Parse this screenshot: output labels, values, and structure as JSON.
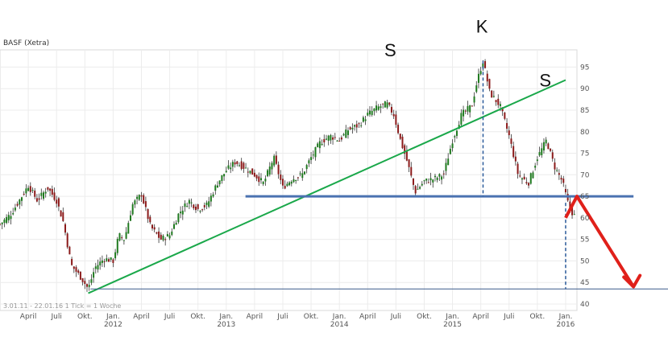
{
  "chart_data": {
    "type": "candlestick",
    "title": "BASF (Xetra)",
    "footer": "3.01.11 - 22.01.16  1 Tick = 1 Woche",
    "y_ticks": [
      40,
      45,
      50,
      55,
      60,
      65,
      70,
      75,
      80,
      85,
      90,
      95
    ],
    "ylim": [
      38.5,
      99
    ],
    "x_ticks": [
      {
        "label": "April",
        "year": "",
        "t": 2011.25
      },
      {
        "label": "Juli",
        "year": "",
        "t": 2011.5
      },
      {
        "label": "Okt.",
        "year": "",
        "t": 2011.75
      },
      {
        "label": "Jan.",
        "year": "2012",
        "t": 2012.0
      },
      {
        "label": "April",
        "year": "",
        "t": 2012.25
      },
      {
        "label": "Juli",
        "year": "",
        "t": 2012.5
      },
      {
        "label": "Okt.",
        "year": "",
        "t": 2012.75
      },
      {
        "label": "Jan.",
        "year": "2013",
        "t": 2013.0
      },
      {
        "label": "April",
        "year": "",
        "t": 2013.25
      },
      {
        "label": "Juli",
        "year": "",
        "t": 2013.5
      },
      {
        "label": "Okt.",
        "year": "",
        "t": 2013.75
      },
      {
        "label": "Jan.",
        "year": "2014",
        "t": 2014.0
      },
      {
        "label": "April",
        "year": "",
        "t": 2014.25
      },
      {
        "label": "Juli",
        "year": "",
        "t": 2014.5
      },
      {
        "label": "Okt.",
        "year": "",
        "t": 2014.75
      },
      {
        "label": "Jan.",
        "year": "2015",
        "t": 2015.0
      },
      {
        "label": "April",
        "year": "",
        "t": 2015.25
      },
      {
        "label": "Juli",
        "year": "",
        "t": 2015.5
      },
      {
        "label": "Okt.",
        "year": "",
        "t": 2015.75
      },
      {
        "label": "Jan.",
        "year": "2016",
        "t": 2016.0
      }
    ],
    "xlim": [
      2011.0,
      2016.1
    ],
    "price_path": [
      [
        2011.0,
        58.5
      ],
      [
        2011.1,
        61
      ],
      [
        2011.25,
        67.5
      ],
      [
        2011.33,
        64
      ],
      [
        2011.42,
        67
      ],
      [
        2011.5,
        64
      ],
      [
        2011.56,
        59
      ],
      [
        2011.63,
        49
      ],
      [
        2011.72,
        46
      ],
      [
        2011.78,
        43.5
      ],
      [
        2011.84,
        48.5
      ],
      [
        2011.92,
        50.5
      ],
      [
        2012.0,
        50
      ],
      [
        2012.05,
        56
      ],
      [
        2012.1,
        55
      ],
      [
        2012.17,
        63
      ],
      [
        2012.25,
        65.5
      ],
      [
        2012.33,
        58
      ],
      [
        2012.42,
        55
      ],
      [
        2012.5,
        56
      ],
      [
        2012.58,
        61
      ],
      [
        2012.67,
        64
      ],
      [
        2012.75,
        62
      ],
      [
        2012.83,
        63
      ],
      [
        2012.92,
        68
      ],
      [
        2013.0,
        71
      ],
      [
        2013.08,
        73
      ],
      [
        2013.17,
        71.5
      ],
      [
        2013.25,
        70
      ],
      [
        2013.33,
        68
      ],
      [
        2013.42,
        74
      ],
      [
        2013.5,
        67
      ],
      [
        2013.58,
        69
      ],
      [
        2013.67,
        70
      ],
      [
        2013.75,
        74
      ],
      [
        2013.83,
        77.5
      ],
      [
        2013.92,
        79
      ],
      [
        2014.0,
        78
      ],
      [
        2014.08,
        80.5
      ],
      [
        2014.17,
        81.5
      ],
      [
        2014.25,
        84
      ],
      [
        2014.33,
        85.5
      ],
      [
        2014.42,
        86.5
      ],
      [
        2014.48,
        84
      ],
      [
        2014.54,
        78
      ],
      [
        2014.6,
        73
      ],
      [
        2014.67,
        66
      ],
      [
        2014.75,
        68.5
      ],
      [
        2014.83,
        69
      ],
      [
        2014.92,
        70
      ],
      [
        2015.0,
        78
      ],
      [
        2015.08,
        84
      ],
      [
        2015.17,
        86
      ],
      [
        2015.22,
        92
      ],
      [
        2015.27,
        96.5
      ],
      [
        2015.33,
        89
      ],
      [
        2015.42,
        86
      ],
      [
        2015.5,
        79
      ],
      [
        2015.58,
        70
      ],
      [
        2015.67,
        68
      ],
      [
        2015.75,
        74
      ],
      [
        2015.83,
        78
      ],
      [
        2015.9,
        72
      ],
      [
        2015.97,
        68.5
      ],
      [
        2016.02,
        63.5
      ],
      [
        2016.07,
        60.5
      ]
    ],
    "annotations": {
      "left_shoulder": "S",
      "head": "K",
      "right_shoulder": "S",
      "trendline": {
        "from": [
          2011.78,
          42.5
        ],
        "to": [
          2016.0,
          92
        ]
      },
      "neckline": 65,
      "support": 43.5,
      "head_marker": {
        "t": 2015.27,
        "value": 96.5
      },
      "breakdown_marker": {
        "t": 2016.0,
        "value": 63.5
      },
      "projection": [
        [
          2016.0,
          60
        ],
        [
          2016.1,
          65
        ],
        [
          2016.6,
          44
        ]
      ]
    }
  }
}
